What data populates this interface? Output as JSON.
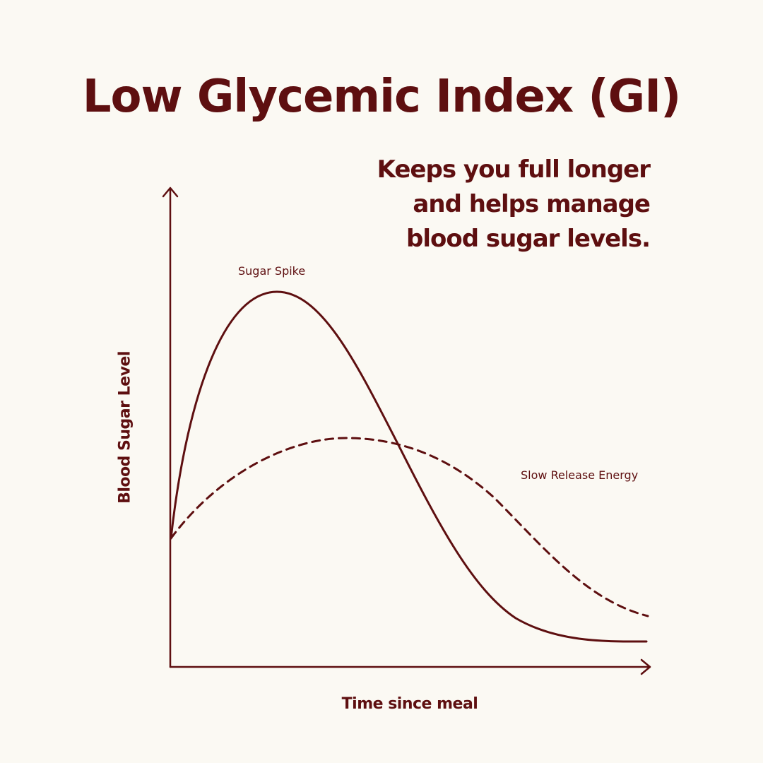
{
  "title": "Low Glycemic Index (GI)",
  "subtitle": {
    "lines": [
      "Keeps you full longer",
      "and helps manage",
      "blood sugar levels."
    ]
  },
  "diagram": {
    "x_axis_label": "Time since meal",
    "y_axis_label": "Blood Sugar Level",
    "curves": [
      {
        "label": "Sugar Spike",
        "style": "solid"
      },
      {
        "label": "Slow Release Energy",
        "style": "dashed"
      }
    ]
  },
  "colors": {
    "background": "#fbf9f3",
    "accent": "#5e0f10"
  }
}
